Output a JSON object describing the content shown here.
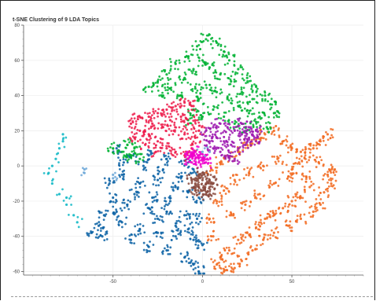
{
  "chart_data": {
    "type": "scatter",
    "title": "t-SNE Clustering of 9 LDA Topics",
    "xlabel": "",
    "ylabel": "",
    "xlim": [
      -100,
      90
    ],
    "ylim": [
      -62,
      80
    ],
    "x_ticks": [
      -50,
      0,
      50
    ],
    "y_ticks": [
      80,
      60,
      40,
      20,
      0,
      -20,
      -40,
      -60
    ],
    "x_tick_labels": [
      "-50",
      "0",
      "50"
    ],
    "y_tick_labels": [
      "80",
      "60",
      "40",
      "20",
      "0",
      "-20",
      "-40",
      "-60"
    ],
    "grid": true,
    "legend": "none",
    "series": [
      {
        "color": "#0b62a4",
        "approximate_points": [
          [
            -48,
            10
          ],
          [
            -40,
            5
          ],
          [
            -30,
            6
          ],
          [
            -20,
            4
          ],
          [
            -10,
            3
          ],
          [
            -5,
            -2
          ],
          [
            -45,
            -5
          ],
          [
            -35,
            -10
          ],
          [
            -25,
            -8
          ],
          [
            -15,
            -12
          ],
          [
            -8,
            -15
          ],
          [
            -2,
            -18
          ],
          [
            -50,
            -18
          ],
          [
            -42,
            -22
          ],
          [
            -30,
            -24
          ],
          [
            -20,
            -26
          ],
          [
            -10,
            -28
          ],
          [
            -3,
            -30
          ],
          [
            -55,
            -28
          ],
          [
            -45,
            -32
          ],
          [
            -35,
            -36
          ],
          [
            -25,
            -38
          ],
          [
            -15,
            -40
          ],
          [
            -5,
            -42
          ],
          [
            -40,
            -42
          ],
          [
            -30,
            -46
          ],
          [
            -20,
            -48
          ],
          [
            -10,
            -52
          ],
          [
            -5,
            -56
          ],
          [
            -2,
            -60
          ],
          [
            -58,
            -34
          ],
          [
            -62,
            -38
          ],
          [
            -56,
            -40
          ],
          [
            -38,
            -16
          ],
          [
            -28,
            -18
          ],
          [
            -18,
            -20
          ],
          [
            -12,
            -6
          ],
          [
            -22,
            -2
          ],
          [
            -33,
            0
          ],
          [
            -44,
            2
          ],
          [
            -52,
            -10
          ],
          [
            -48,
            -26
          ],
          [
            -8,
            -36
          ],
          [
            0,
            -45
          ],
          [
            -25,
            -30
          ],
          [
            -15,
            -34
          ]
        ]
      },
      {
        "color": "#f26b21",
        "approximate_points": [
          [
            5,
            -2
          ],
          [
            10,
            2
          ],
          [
            15,
            5
          ],
          [
            20,
            8
          ],
          [
            25,
            12
          ],
          [
            30,
            15
          ],
          [
            35,
            18
          ],
          [
            40,
            20
          ],
          [
            45,
            14
          ],
          [
            50,
            10
          ],
          [
            55,
            8
          ],
          [
            60,
            5
          ],
          [
            65,
            2
          ],
          [
            70,
            -5
          ],
          [
            72,
            -10
          ],
          [
            68,
            -15
          ],
          [
            60,
            -12
          ],
          [
            55,
            -18
          ],
          [
            50,
            -20
          ],
          [
            45,
            -24
          ],
          [
            40,
            -28
          ],
          [
            35,
            -30
          ],
          [
            30,
            -35
          ],
          [
            25,
            -38
          ],
          [
            20,
            -42
          ],
          [
            15,
            -48
          ],
          [
            10,
            -52
          ],
          [
            8,
            -56
          ],
          [
            12,
            -60
          ],
          [
            18,
            -58
          ],
          [
            22,
            -54
          ],
          [
            28,
            -48
          ],
          [
            34,
            -42
          ],
          [
            40,
            -38
          ],
          [
            48,
            -34
          ],
          [
            55,
            -30
          ],
          [
            62,
            -26
          ],
          [
            66,
            -22
          ],
          [
            8,
            -20
          ],
          [
            12,
            -14
          ],
          [
            18,
            -8
          ],
          [
            26,
            -4
          ],
          [
            34,
            0
          ],
          [
            42,
            4
          ],
          [
            50,
            -2
          ],
          [
            58,
            -6
          ],
          [
            4,
            -30
          ],
          [
            6,
            -40
          ],
          [
            16,
            -28
          ],
          [
            24,
            -22
          ],
          [
            32,
            -16
          ],
          [
            40,
            -10
          ],
          [
            48,
            -6
          ],
          [
            54,
            2
          ],
          [
            62,
            10
          ],
          [
            66,
            14
          ],
          [
            70,
            18
          ],
          [
            74,
            -2
          ]
        ]
      },
      {
        "color": "#00b233",
        "approximate_points": [
          [
            -10,
            50
          ],
          [
            -5,
            55
          ],
          [
            0,
            60
          ],
          [
            -15,
            58
          ],
          [
            -20,
            52
          ],
          [
            -25,
            48
          ],
          [
            -30,
            45
          ],
          [
            -8,
            62
          ],
          [
            -3,
            68
          ],
          [
            2,
            72
          ],
          [
            8,
            70
          ],
          [
            12,
            65
          ],
          [
            15,
            60
          ],
          [
            20,
            55
          ],
          [
            25,
            50
          ],
          [
            30,
            45
          ],
          [
            35,
            40
          ],
          [
            38,
            35
          ],
          [
            40,
            30
          ],
          [
            32,
            28
          ],
          [
            26,
            30
          ],
          [
            20,
            34
          ],
          [
            14,
            38
          ],
          [
            8,
            42
          ],
          [
            2,
            46
          ],
          [
            -4,
            44
          ],
          [
            -2,
            38
          ],
          [
            -5,
            32
          ],
          [
            -8,
            26
          ],
          [
            0,
            28
          ],
          [
            6,
            32
          ],
          [
            12,
            28
          ],
          [
            18,
            24
          ],
          [
            24,
            22
          ],
          [
            30,
            25
          ],
          [
            36,
            22
          ],
          [
            -12,
            40
          ],
          [
            -18,
            44
          ],
          [
            -22,
            40
          ],
          [
            -50,
            10
          ],
          [
            -45,
            8
          ],
          [
            -40,
            6
          ],
          [
            -35,
            4
          ],
          [
            -42,
            12
          ],
          [
            -38,
            10
          ],
          [
            16,
            48
          ],
          [
            22,
            42
          ],
          [
            28,
            38
          ],
          [
            10,
            52
          ],
          [
            4,
            56
          ]
        ]
      },
      {
        "color": "#ed1b4a",
        "approximate_points": [
          [
            -30,
            28
          ],
          [
            -25,
            30
          ],
          [
            -20,
            32
          ],
          [
            -15,
            34
          ],
          [
            -10,
            36
          ],
          [
            -5,
            34
          ],
          [
            -28,
            24
          ],
          [
            -22,
            22
          ],
          [
            -16,
            20
          ],
          [
            -10,
            18
          ],
          [
            -4,
            16
          ],
          [
            -30,
            18
          ],
          [
            -25,
            14
          ],
          [
            -20,
            10
          ],
          [
            -15,
            8
          ],
          [
            -10,
            6
          ],
          [
            -6,
            10
          ],
          [
            -8,
            24
          ],
          [
            -35,
            20
          ],
          [
            -38,
            16
          ],
          [
            -18,
            26
          ],
          [
            -12,
            28
          ],
          [
            -26,
            8
          ],
          [
            -32,
            12
          ],
          [
            -4,
            26
          ],
          [
            -2,
            20
          ],
          [
            -40,
            24
          ],
          [
            -36,
            28
          ]
        ]
      },
      {
        "color": "#9d1ab0",
        "approximate_points": [
          [
            2,
            20
          ],
          [
            6,
            22
          ],
          [
            10,
            24
          ],
          [
            14,
            22
          ],
          [
            18,
            20
          ],
          [
            22,
            18
          ],
          [
            26,
            16
          ],
          [
            30,
            14
          ],
          [
            4,
            14
          ],
          [
            8,
            16
          ],
          [
            12,
            14
          ],
          [
            16,
            12
          ],
          [
            20,
            10
          ],
          [
            24,
            12
          ],
          [
            28,
            18
          ],
          [
            10,
            8
          ],
          [
            14,
            6
          ],
          [
            18,
            4
          ],
          [
            6,
            10
          ],
          [
            22,
            24
          ],
          [
            26,
            22
          ],
          [
            30,
            20
          ]
        ]
      },
      {
        "color": "#f000cc",
        "approximate_points": [
          [
            -8,
            4
          ],
          [
            -6,
            6
          ],
          [
            -4,
            4
          ],
          [
            -2,
            6
          ],
          [
            0,
            4
          ],
          [
            2,
            6
          ],
          [
            -6,
            2
          ],
          [
            -2,
            2
          ],
          [
            2,
            2
          ],
          [
            -4,
            8
          ]
        ]
      },
      {
        "color": "#8a4b3f",
        "approximate_points": [
          [
            -2,
            -6
          ],
          [
            0,
            -8
          ],
          [
            2,
            -10
          ],
          [
            4,
            -8
          ],
          [
            -4,
            -10
          ],
          [
            -2,
            -12
          ],
          [
            0,
            -14
          ],
          [
            2,
            -16
          ],
          [
            4,
            -12
          ],
          [
            -6,
            -8
          ],
          [
            6,
            -10
          ],
          [
            0,
            -4
          ],
          [
            -4,
            -14
          ],
          [
            4,
            -16
          ]
        ]
      },
      {
        "color": "#10b8c5",
        "approximate_points": [
          [
            -78,
            18
          ],
          [
            -80,
            10
          ],
          [
            -82,
            4
          ],
          [
            -84,
            0
          ],
          [
            -86,
            -4
          ],
          [
            -84,
            -10
          ],
          [
            -80,
            -16
          ],
          [
            -76,
            -22
          ],
          [
            -72,
            -28
          ],
          [
            -70,
            -32
          ],
          [
            -78,
            14
          ],
          [
            -76,
            -18
          ]
        ]
      },
      {
        "color": "#6ea8d8",
        "approximate_points": [
          [
            -66,
            -2
          ],
          [
            -66,
            -4
          ],
          [
            -50,
            -5
          ],
          [
            -50,
            -7
          ],
          [
            0,
            8
          ],
          [
            4,
            8
          ]
        ]
      }
    ]
  }
}
